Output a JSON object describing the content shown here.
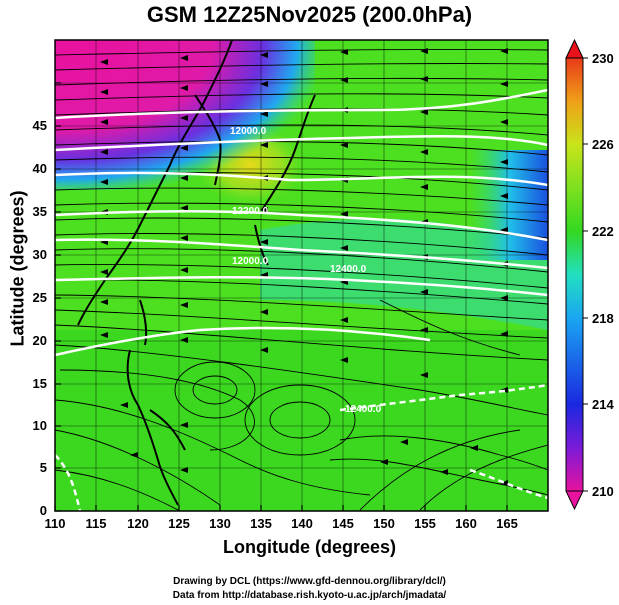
{
  "title": "GSM 12Z25Nov2025 (200.0hPa)",
  "xaxis": {
    "label": "Longitude (degrees)",
    "ticks": [
      "110",
      "115",
      "120",
      "125",
      "130",
      "135",
      "140",
      "145",
      "150",
      "155",
      "160",
      "165"
    ]
  },
  "yaxis": {
    "label": "Latitude  (degrees)",
    "ticks": [
      "0",
      "5",
      "10",
      "15",
      "20",
      "25",
      "30",
      "35",
      "40",
      "45"
    ]
  },
  "colorbar": {
    "ticks": [
      "210",
      "214",
      "218",
      "222",
      "226",
      "230"
    ],
    "colors": [
      "#e8129f",
      "#7a1bd8",
      "#1a28e0",
      "#1aa6f2",
      "#22e0c0",
      "#33d820",
      "#7ee020",
      "#c8e41a",
      "#f0c818",
      "#f08a1a",
      "#e83a1a"
    ]
  },
  "contours": {
    "labels": [
      "12000.0",
      "12200.0",
      "12000.0",
      "12400.0",
      "12400.0"
    ],
    "line_color": "#ffffff"
  },
  "credits": {
    "line1": "Drawing by DCL (https://www.gfd-dennou.org/library/dcl/)",
    "line2": "Data from http://database.rish.kyoto-u.ac.jp/arch/jmadata/"
  }
}
